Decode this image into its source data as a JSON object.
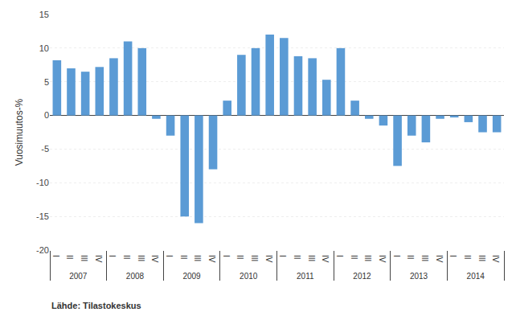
{
  "chart_data": {
    "type": "bar",
    "categories": [
      "I",
      "II",
      "III",
      "IV",
      "I",
      "II",
      "III",
      "IV",
      "I",
      "II",
      "III",
      "IV",
      "I",
      "II",
      "III",
      "IV",
      "I",
      "II",
      "III",
      "IV",
      "I",
      "II",
      "III",
      "IV",
      "I",
      "II",
      "III",
      "IV",
      "I",
      "II",
      "III",
      "IV"
    ],
    "group_labels": [
      "2007",
      "2008",
      "2009",
      "2010",
      "2011",
      "2012",
      "2013",
      "2014"
    ],
    "values": [
      8.2,
      7.0,
      6.5,
      7.2,
      8.5,
      11.0,
      10.0,
      -0.5,
      -3.0,
      -15.0,
      -16.0,
      -8.0,
      2.2,
      9.0,
      10.0,
      12.0,
      11.5,
      8.8,
      8.5,
      5.3,
      10.0,
      2.2,
      -0.5,
      -1.5,
      -7.5,
      -3.0,
      -4.0,
      -0.5,
      -0.3,
      -1.0,
      -2.5,
      -2.5
    ],
    "color": "#5B9BD5",
    "ylabel": "Vuosimuutos-%",
    "ylim": [
      -20,
      15
    ],
    "yticks": [
      -20,
      -15,
      -10,
      -5,
      0,
      5,
      10,
      15
    ],
    "grid": true,
    "annotations": [
      "Lähde: Tilastokeskus"
    ]
  }
}
